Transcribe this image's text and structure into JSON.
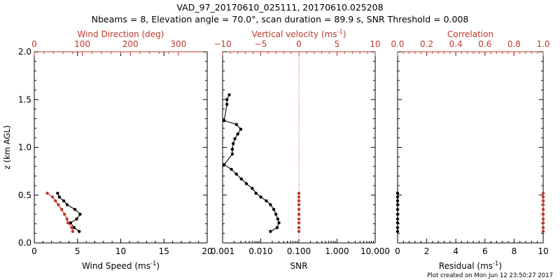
{
  "header": {
    "title": "VAD_97_20170610_025111, 20170610.025208",
    "subtitle": "Nbeams = 8, Elevation angle = 70.0°, scan duration = 89.9 s, SNR Threshold = 0.008"
  },
  "footer": {
    "created": "Plot created on Mon Jun 12 23:50:27 2017"
  },
  "colors": {
    "primary": "#000000",
    "secondary": "#c0392b"
  },
  "chart_data": [
    {
      "name": "wind",
      "type": "line",
      "ylabel": "z (km AGL)",
      "ylim": [
        0,
        2.0
      ],
      "yticks": [
        "0.0",
        "0.5",
        "1.0",
        "1.5",
        "2.0"
      ],
      "xlabel": "Wind Speed (ms",
      "xlabel_sup": "-1",
      "xlabel_end": ")",
      "xlim": [
        0,
        20
      ],
      "xticks": [
        "0",
        "5",
        "10",
        "15",
        "20"
      ],
      "top_xlabel": "Wind Direction (deg)",
      "top_xlim": [
        0,
        360
      ],
      "top_xticks": [
        "0",
        "100",
        "200",
        "300"
      ],
      "series": [
        {
          "name": "Wind Speed",
          "axis": "bottom",
          "color": "#000000",
          "z": [
            0.12,
            0.16,
            0.21,
            0.25,
            0.3,
            0.35,
            0.4,
            0.44,
            0.48,
            0.52
          ],
          "x": [
            5.2,
            4.6,
            4.2,
            4.9,
            5.3,
            4.7,
            3.8,
            3.4,
            2.9,
            2.7
          ]
        },
        {
          "name": "Wind Direction",
          "axis": "top",
          "color": "#c0392b",
          "z": [
            0.12,
            0.16,
            0.21,
            0.25,
            0.3,
            0.35,
            0.4,
            0.44,
            0.48,
            0.52
          ],
          "x": [
            80,
            78,
            70,
            68,
            63,
            57,
            50,
            44,
            38,
            27
          ]
        }
      ]
    },
    {
      "name": "vertical",
      "type": "line",
      "xlabel": "SNR",
      "xscale": "log",
      "xlim": [
        0.001,
        10
      ],
      "xticks": [
        "0.001",
        "0.010",
        "0.100",
        "1.000",
        "10.000"
      ],
      "top_xlabel": "Vertical velocity (ms",
      "top_xlabel_sup": "-1",
      "top_xlabel_end": ")",
      "top_xlim": [
        -10,
        10
      ],
      "top_xticks": [
        "−10",
        "−5",
        "0",
        "5",
        "10"
      ],
      "series": [
        {
          "name": "SNR",
          "axis": "bottom",
          "color": "#000000",
          "z": [
            0.12,
            0.16,
            0.21,
            0.25,
            0.3,
            0.35,
            0.4,
            0.44,
            0.48,
            0.52,
            0.57,
            0.62,
            0.67,
            0.72,
            0.77,
            0.82,
            0.93,
            0.98,
            1.04,
            1.09,
            1.14,
            1.19,
            1.24,
            1.28,
            1.45,
            1.5,
            1.55
          ],
          "x": [
            0.018,
            0.027,
            0.03,
            0.028,
            0.025,
            0.022,
            0.018,
            0.014,
            0.01,
            0.0075,
            0.006,
            0.0042,
            0.0031,
            0.0023,
            0.0017,
            0.0011,
            0.0018,
            0.0018,
            0.0019,
            0.0021,
            0.0025,
            0.003,
            0.0023,
            0.0011,
            0.0013,
            0.0013,
            0.0015
          ]
        },
        {
          "name": "Vertical velocity",
          "axis": "top",
          "color": "#c0392b",
          "style": "markers",
          "z": [
            0.12,
            0.16,
            0.21,
            0.25,
            0.3,
            0.35,
            0.4,
            0.44,
            0.48,
            0.52
          ],
          "x": [
            0,
            0,
            0,
            0,
            0,
            0,
            0,
            0,
            0,
            0
          ]
        }
      ],
      "reference_line": {
        "axis": "top",
        "x": 0,
        "style": "dotted",
        "color": "#c0392b"
      }
    },
    {
      "name": "residual",
      "type": "line",
      "xlabel": "Residual (ms",
      "xlabel_sup": "-1",
      "xlabel_end": ")",
      "xlim": [
        0,
        10
      ],
      "xticks": [
        "0",
        "2",
        "4",
        "6",
        "8",
        "10"
      ],
      "top_xlabel": "Correlation",
      "top_xlim": [
        0,
        1.0
      ],
      "top_xticks": [
        "0.0",
        "0.2",
        "0.4",
        "0.6",
        "0.8",
        "1.0"
      ],
      "series": [
        {
          "name": "Residual",
          "axis": "bottom",
          "color": "#000000",
          "z": [
            0.12,
            0.16,
            0.21,
            0.25,
            0.3,
            0.35,
            0.4,
            0.44,
            0.48,
            0.52
          ],
          "x": [
            0,
            0,
            0,
            0,
            0,
            0,
            0,
            0,
            0,
            0
          ]
        },
        {
          "name": "Correlation",
          "axis": "top",
          "color": "#c0392b",
          "z": [
            0.12,
            0.16,
            0.21,
            0.25,
            0.3,
            0.35,
            0.4,
            0.44,
            0.48,
            0.52
          ],
          "x": [
            1.0,
            1.0,
            1.0,
            1.0,
            1.0,
            1.0,
            1.0,
            1.0,
            1.0,
            1.0
          ]
        }
      ]
    }
  ]
}
